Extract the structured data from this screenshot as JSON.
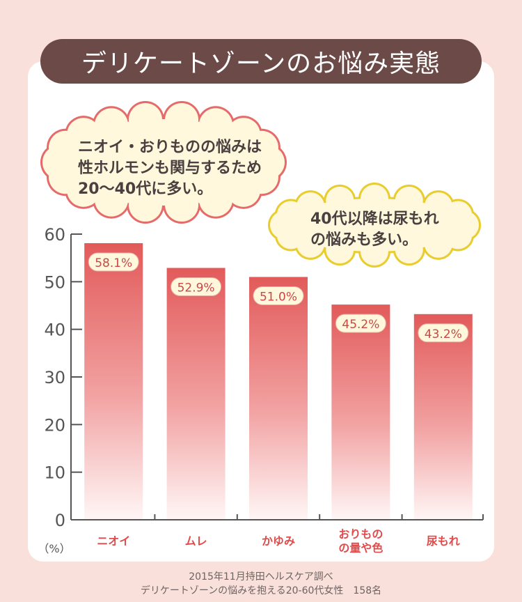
{
  "title": "デリケートゾーンのお悩み実態",
  "callouts": [
    {
      "text": "ニオイ・おりものの悩みは\n性ホルモンも関与するため\n20〜40代に多い。"
    },
    {
      "text": "40代以降は尿もれ\nの悩みも多い。"
    }
  ],
  "chart_data": {
    "type": "bar",
    "categories": [
      "ニオイ",
      "ムレ",
      "かゆみ",
      "おりもの\nの量や色",
      "尿もれ"
    ],
    "values": [
      58.1,
      52.9,
      51.0,
      45.2,
      43.2
    ],
    "data_labels": [
      "58.1%",
      "52.9%",
      "51.0%",
      "45.2%",
      "43.2%"
    ],
    "ylabel": "（%）",
    "ylim": [
      0,
      60
    ],
    "yticks": [
      0,
      10,
      20,
      30,
      40,
      50,
      60
    ],
    "grid": false,
    "colors": {
      "bar_top": "#e25a5a",
      "bar_bottom": "#fff5f5",
      "category_text": "#e14b4b",
      "axis": "#555555"
    }
  },
  "footer": {
    "line1": "2015年11月持田ヘルスケア調べ",
    "line2": "デリケートゾーンの悩みを抱える20-60代女性　158名"
  },
  "colors": {
    "background": "#f9e0da",
    "banner": "#6b4a47",
    "cloud_pink_border": "#e66a6a",
    "cloud_yellow_border": "#e9cc2e",
    "cloud_fill": "#fff8dc"
  }
}
